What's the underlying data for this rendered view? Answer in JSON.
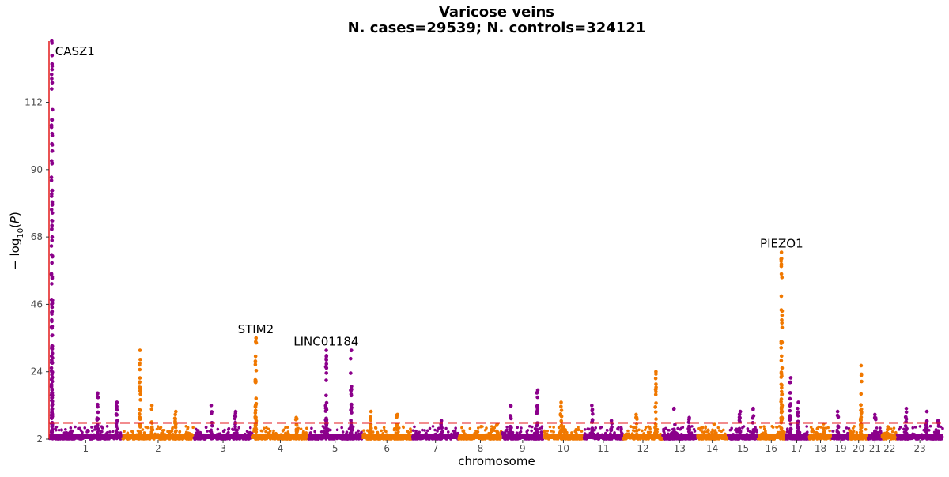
{
  "chart_data": {
    "type": "scatter",
    "title": "Varicose veins",
    "subtitle": "N. cases=29539; N. controls=324121",
    "xlabel": "chromosome",
    "ylabel": "-log10(P)",
    "ylim": [
      2,
      132
    ],
    "yticks": [
      2,
      24,
      46,
      68,
      90,
      112
    ],
    "significance_threshold": 7.3,
    "colors": {
      "odd_chromosome": "#8B008B",
      "even_chromosome": "#F07800",
      "threshold": "#E41A1C"
    },
    "chromosomes": [
      {
        "label": "1",
        "length": 249
      },
      {
        "label": "2",
        "length": 243
      },
      {
        "label": "3",
        "length": 198
      },
      {
        "label": "4",
        "length": 191
      },
      {
        "label": "5",
        "length": 181
      },
      {
        "label": "6",
        "length": 171
      },
      {
        "label": "7",
        "length": 159
      },
      {
        "label": "8",
        "length": 146
      },
      {
        "label": "9",
        "length": 141
      },
      {
        "label": "10",
        "length": 136
      },
      {
        "label": "11",
        "length": 135
      },
      {
        "label": "12",
        "length": 134
      },
      {
        "label": "13",
        "length": 115
      },
      {
        "label": "14",
        "length": 107
      },
      {
        "label": "15",
        "length": 102
      },
      {
        "label": "16",
        "length": 90
      },
      {
        "label": "17",
        "length": 83
      },
      {
        "label": "18",
        "length": 78
      },
      {
        "label": "19",
        "length": 59
      },
      {
        "label": "20",
        "length": 63
      },
      {
        "label": "21",
        "length": 48
      },
      {
        "label": "22",
        "length": 51
      },
      {
        "label": "23",
        "length": 155
      }
    ],
    "peaks": [
      {
        "chr": "1",
        "pos": 10,
        "max": 132,
        "label": "CASZ1"
      },
      {
        "chr": "1",
        "pos": 165,
        "max": 17
      },
      {
        "chr": "1",
        "pos": 230,
        "max": 14
      },
      {
        "chr": "2",
        "pos": 60,
        "max": 31
      },
      {
        "chr": "2",
        "pos": 100,
        "max": 13
      },
      {
        "chr": "2",
        "pos": 180,
        "max": 11
      },
      {
        "chr": "3",
        "pos": 60,
        "max": 13
      },
      {
        "chr": "3",
        "pos": 140,
        "max": 11
      },
      {
        "chr": "4",
        "pos": 12,
        "max": 35,
        "label": "STIM2"
      },
      {
        "chr": "4",
        "pos": 150,
        "max": 9
      },
      {
        "chr": "5",
        "pos": 60,
        "max": 31,
        "label": "LINC01184"
      },
      {
        "chr": "5",
        "pos": 145,
        "max": 31
      },
      {
        "chr": "6",
        "pos": 30,
        "max": 11
      },
      {
        "chr": "6",
        "pos": 120,
        "max": 10
      },
      {
        "chr": "7",
        "pos": 100,
        "max": 8
      },
      {
        "chr": "8",
        "pos": 130,
        "max": 7
      },
      {
        "chr": "9",
        "pos": 30,
        "max": 13
      },
      {
        "chr": "9",
        "pos": 120,
        "max": 18
      },
      {
        "chr": "10",
        "pos": 60,
        "max": 14
      },
      {
        "chr": "11",
        "pos": 30,
        "max": 13
      },
      {
        "chr": "11",
        "pos": 95,
        "max": 8
      },
      {
        "chr": "12",
        "pos": 45,
        "max": 10
      },
      {
        "chr": "12",
        "pos": 110,
        "max": 24
      },
      {
        "chr": "13",
        "pos": 40,
        "max": 12
      },
      {
        "chr": "13",
        "pos": 90,
        "max": 9
      },
      {
        "chr": "14",
        "pos": 60,
        "max": 7
      },
      {
        "chr": "15",
        "pos": 40,
        "max": 11
      },
      {
        "chr": "15",
        "pos": 85,
        "max": 12
      },
      {
        "chr": "16",
        "pos": 80,
        "max": 63,
        "label": "PIEZO1"
      },
      {
        "chr": "17",
        "pos": 20,
        "max": 22
      },
      {
        "chr": "17",
        "pos": 45,
        "max": 14
      },
      {
        "chr": "18",
        "pos": 50,
        "max": 7
      },
      {
        "chr": "19",
        "pos": 20,
        "max": 11
      },
      {
        "chr": "20",
        "pos": 40,
        "max": 26
      },
      {
        "chr": "21",
        "pos": 25,
        "max": 10
      },
      {
        "chr": "22",
        "pos": 20,
        "max": 6
      },
      {
        "chr": "23",
        "pos": 30,
        "max": 12
      },
      {
        "chr": "23",
        "pos": 100,
        "max": 11
      },
      {
        "chr": "23",
        "pos": 140,
        "max": 8
      }
    ]
  }
}
